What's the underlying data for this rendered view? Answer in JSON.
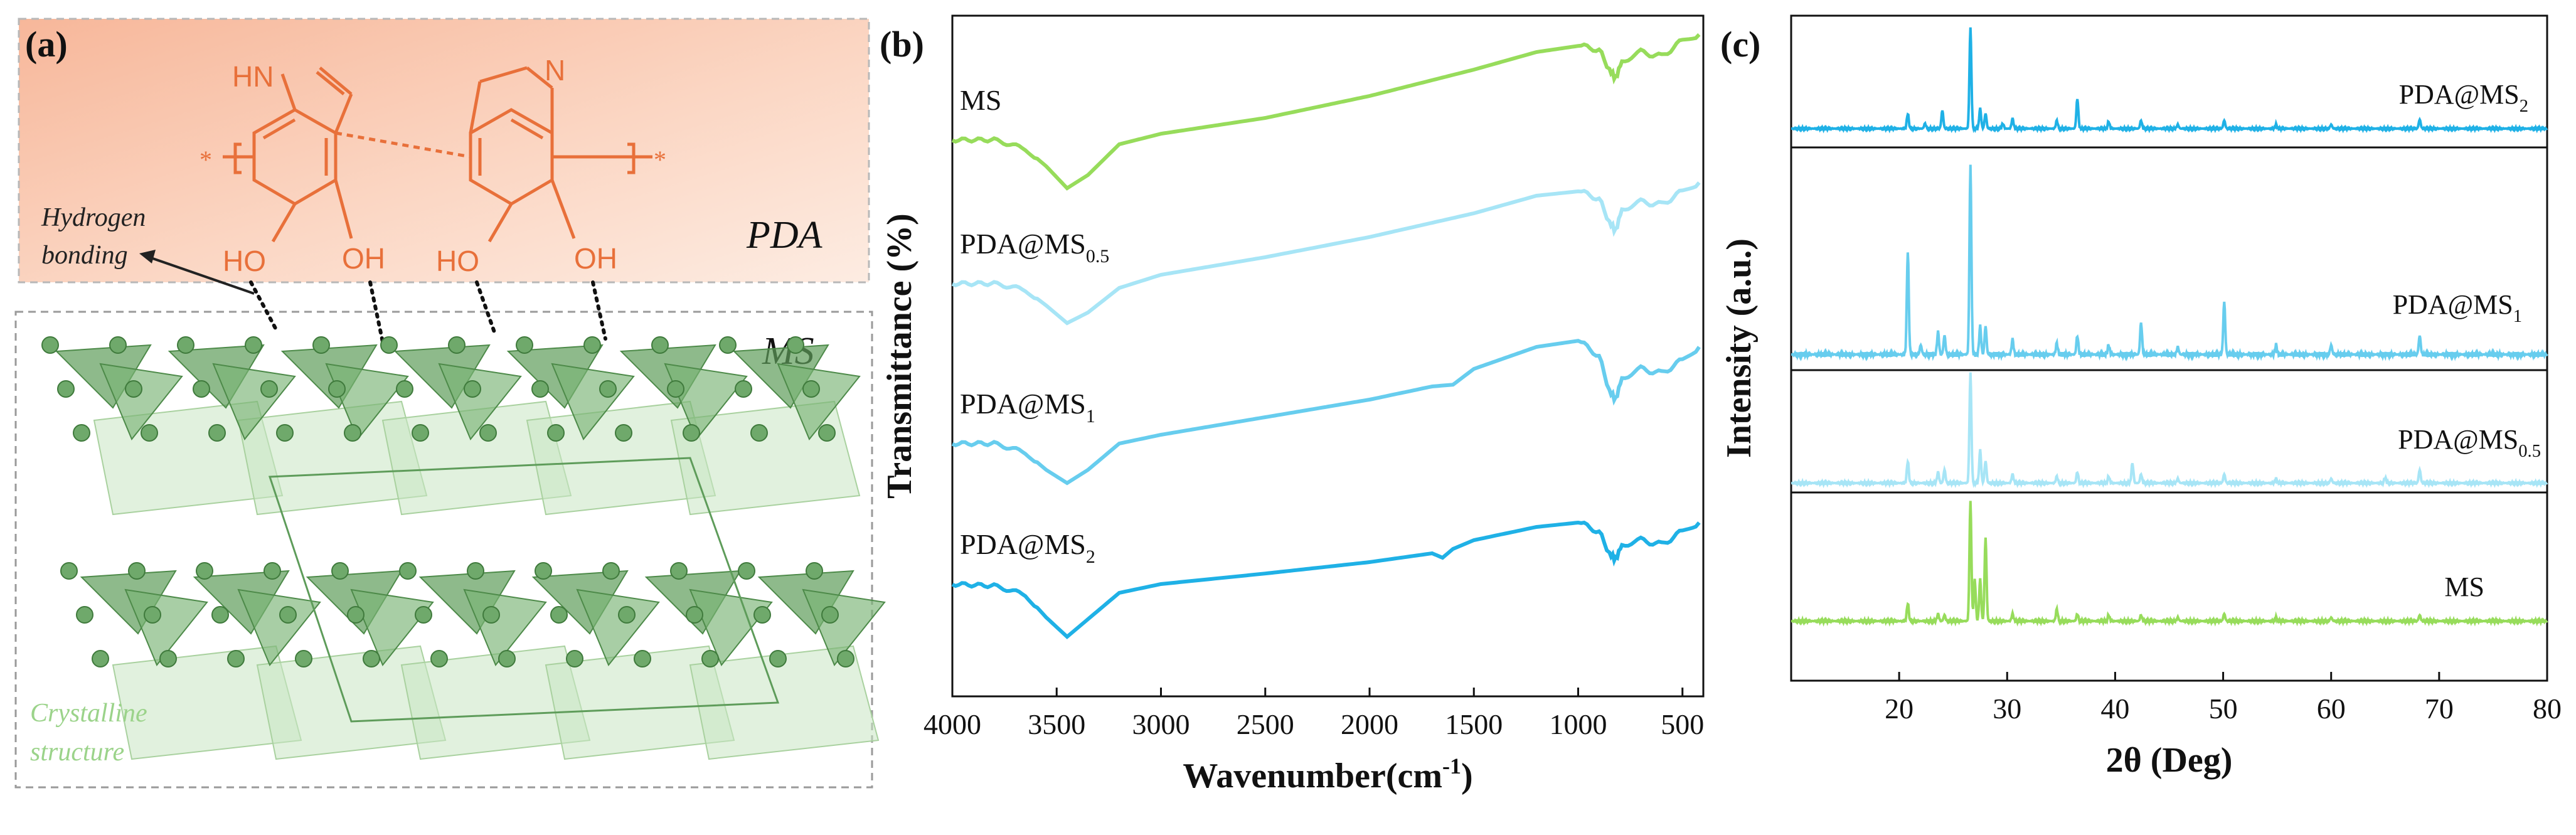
{
  "panels": {
    "a": {
      "label": "(a)",
      "pda_label": "PDA",
      "ms_label": "MS",
      "hbond_label_line1": "Hydrogen",
      "hbond_label_line2": "bonding",
      "crystal_label_line1": "Crystalline",
      "crystal_label_line2": "structure",
      "atoms": {
        "hn": "HN",
        "n": "N",
        "ho": "HO",
        "oh": "OH",
        "star": "*"
      }
    },
    "b": {
      "label": "(b)"
    },
    "c": {
      "label": "(c)"
    }
  },
  "colors": {
    "ms": "#97dc5b",
    "pda_ms_05": "#a7e5f6",
    "pda_ms_1": "#67cdee",
    "pda_ms_2": "#1fb1e6",
    "pda_orange": "#e8703a",
    "crystal_green": "#6fa96b"
  },
  "chart_data": [
    {
      "panel": "b",
      "type": "line",
      "xlabel": "Wavenumber(cm",
      "xlabel_sup": "-1",
      "xlabel_close": ")",
      "ylabel": "Transmittance (%)",
      "xlim": [
        4000,
        400
      ],
      "x_ticks": [
        4000,
        3500,
        3000,
        2500,
        2000,
        1500,
        1000,
        500
      ],
      "yticks_shown": false,
      "series": [
        {
          "name": "MS",
          "base": "MS",
          "sub": "",
          "color": "#97dc5b",
          "offset": 3.0,
          "points": [
            [
              4000,
              0.55
            ],
            [
              3800,
              0.55
            ],
            [
              3650,
              0.45
            ],
            [
              3550,
              0.25
            ],
            [
              3450,
              0.0
            ],
            [
              3350,
              0.15
            ],
            [
              3200,
              0.5
            ],
            [
              3000,
              0.62
            ],
            [
              2500,
              0.8
            ],
            [
              2000,
              1.05
            ],
            [
              1500,
              1.35
            ],
            [
              1200,
              1.55
            ],
            [
              1000,
              1.62
            ],
            [
              900,
              1.58
            ],
            [
              850,
              1.35
            ],
            [
              820,
              1.25
            ],
            [
              790,
              1.45
            ],
            [
              700,
              1.55
            ],
            [
              600,
              1.5
            ],
            [
              500,
              1.68
            ],
            [
              420,
              1.75
            ]
          ]
        },
        {
          "name": "PDA@MS0.5",
          "base": "PDA@MS",
          "sub": "0.5",
          "color": "#a7e5f6",
          "offset": 2.0,
          "points": [
            [
              4000,
              0.45
            ],
            [
              3800,
              0.45
            ],
            [
              3650,
              0.38
            ],
            [
              3550,
              0.2
            ],
            [
              3450,
              0.0
            ],
            [
              3350,
              0.12
            ],
            [
              3200,
              0.4
            ],
            [
              3000,
              0.55
            ],
            [
              2500,
              0.75
            ],
            [
              2000,
              0.98
            ],
            [
              1500,
              1.25
            ],
            [
              1200,
              1.45
            ],
            [
              1000,
              1.5
            ],
            [
              900,
              1.42
            ],
            [
              850,
              1.15
            ],
            [
              820,
              1.05
            ],
            [
              790,
              1.3
            ],
            [
              700,
              1.38
            ],
            [
              600,
              1.35
            ],
            [
              500,
              1.5
            ],
            [
              420,
              1.6
            ]
          ]
        },
        {
          "name": "PDA@MS1",
          "base": "PDA@MS",
          "sub": "1",
          "color": "#67cdee",
          "offset": 1.0,
          "points": [
            [
              4000,
              0.45
            ],
            [
              3800,
              0.45
            ],
            [
              3650,
              0.35
            ],
            [
              3550,
              0.15
            ],
            [
              3450,
              0.0
            ],
            [
              3350,
              0.15
            ],
            [
              3200,
              0.45
            ],
            [
              3000,
              0.55
            ],
            [
              2500,
              0.75
            ],
            [
              2000,
              0.95
            ],
            [
              1700,
              1.1
            ],
            [
              1600,
              1.12
            ],
            [
              1500,
              1.3
            ],
            [
              1200,
              1.55
            ],
            [
              1000,
              1.62
            ],
            [
              900,
              1.45
            ],
            [
              850,
              1.05
            ],
            [
              820,
              0.95
            ],
            [
              790,
              1.2
            ],
            [
              700,
              1.3
            ],
            [
              600,
              1.25
            ],
            [
              500,
              1.4
            ],
            [
              420,
              1.55
            ]
          ]
        },
        {
          "name": "PDA@MS2",
          "base": "PDA@MS",
          "sub": "2",
          "color": "#1fb1e6",
          "offset": 0.0,
          "points": [
            [
              4000,
              0.6
            ],
            [
              3800,
              0.58
            ],
            [
              3650,
              0.48
            ],
            [
              3550,
              0.22
            ],
            [
              3450,
              0.0
            ],
            [
              3350,
              0.2
            ],
            [
              3200,
              0.5
            ],
            [
              3000,
              0.6
            ],
            [
              2500,
              0.72
            ],
            [
              2000,
              0.85
            ],
            [
              1700,
              0.95
            ],
            [
              1650,
              0.9
            ],
            [
              1600,
              1.0
            ],
            [
              1500,
              1.1
            ],
            [
              1200,
              1.25
            ],
            [
              1000,
              1.3
            ],
            [
              900,
              1.2
            ],
            [
              850,
              0.95
            ],
            [
              820,
              0.88
            ],
            [
              790,
              1.05
            ],
            [
              700,
              1.1
            ],
            [
              600,
              1.05
            ],
            [
              500,
              1.2
            ],
            [
              420,
              1.3
            ]
          ]
        }
      ]
    },
    {
      "panel": "c",
      "type": "line",
      "xlabel": "2θ (Deg)",
      "ylabel": "Intensity (a.u.)",
      "xlim": [
        10,
        80
      ],
      "x_ticks": [
        20,
        30,
        40,
        50,
        60,
        70,
        80
      ],
      "yticks_shown": false,
      "series": [
        {
          "name": "PDA@MS2",
          "base": "PDA@MS",
          "sub": "2",
          "color": "#1fb1e6",
          "offset": 3,
          "peaks": [
            [
              20.8,
              0.15
            ],
            [
              22.4,
              0.05
            ],
            [
              24.0,
              0.18
            ],
            [
              26.6,
              1.0
            ],
            [
              27.5,
              0.2
            ],
            [
              28.0,
              0.15
            ],
            [
              29.6,
              0.05
            ],
            [
              30.5,
              0.1
            ],
            [
              34.6,
              0.08
            ],
            [
              36.5,
              0.3
            ],
            [
              39.4,
              0.07
            ],
            [
              42.4,
              0.08
            ],
            [
              45.8,
              0.04
            ],
            [
              50.1,
              0.08
            ],
            [
              54.9,
              0.04
            ],
            [
              60.0,
              0.04
            ],
            [
              68.2,
              0.09
            ]
          ]
        },
        {
          "name": "PDA@MS1",
          "base": "PDA@MS",
          "sub": "1",
          "color": "#67cdee",
          "offset": 2,
          "peaks": [
            [
              20.8,
              0.55
            ],
            [
              22.0,
              0.05
            ],
            [
              23.6,
              0.12
            ],
            [
              24.2,
              0.1
            ],
            [
              26.6,
              1.0
            ],
            [
              27.5,
              0.15
            ],
            [
              28.0,
              0.15
            ],
            [
              30.5,
              0.08
            ],
            [
              34.6,
              0.06
            ],
            [
              36.5,
              0.1
            ],
            [
              39.4,
              0.05
            ],
            [
              42.4,
              0.17
            ],
            [
              45.8,
              0.04
            ],
            [
              50.1,
              0.28
            ],
            [
              54.9,
              0.05
            ],
            [
              60.0,
              0.05
            ],
            [
              68.2,
              0.1
            ]
          ]
        },
        {
          "name": "PDA@MS0.5",
          "base": "PDA@MS",
          "sub": "0.5",
          "color": "#a7e5f6",
          "offset": 1,
          "peaks": [
            [
              20.8,
              0.2
            ],
            [
              23.6,
              0.1
            ],
            [
              24.2,
              0.12
            ],
            [
              26.6,
              1.0
            ],
            [
              27.5,
              0.3
            ],
            [
              28.0,
              0.2
            ],
            [
              30.5,
              0.08
            ],
            [
              34.6,
              0.06
            ],
            [
              36.5,
              0.1
            ],
            [
              39.4,
              0.06
            ],
            [
              41.6,
              0.18
            ],
            [
              42.4,
              0.08
            ],
            [
              45.8,
              0.04
            ],
            [
              50.1,
              0.08
            ],
            [
              54.9,
              0.04
            ],
            [
              60.0,
              0.04
            ],
            [
              65.0,
              0.05
            ],
            [
              68.2,
              0.12
            ]
          ]
        },
        {
          "name": "MS",
          "base": "MS",
          "sub": "",
          "color": "#97dc5b",
          "offset": 0,
          "peaks": [
            [
              20.8,
              0.15
            ],
            [
              23.6,
              0.06
            ],
            [
              24.2,
              0.05
            ],
            [
              26.6,
              1.0
            ],
            [
              27.0,
              0.35
            ],
            [
              27.5,
              0.35
            ],
            [
              28.0,
              0.7
            ],
            [
              30.5,
              0.06
            ],
            [
              34.6,
              0.1
            ],
            [
              36.5,
              0.06
            ],
            [
              39.4,
              0.05
            ],
            [
              42.4,
              0.05
            ],
            [
              45.8,
              0.03
            ],
            [
              50.1,
              0.06
            ],
            [
              54.9,
              0.03
            ],
            [
              60.0,
              0.03
            ],
            [
              68.2,
              0.05
            ]
          ]
        }
      ]
    }
  ]
}
